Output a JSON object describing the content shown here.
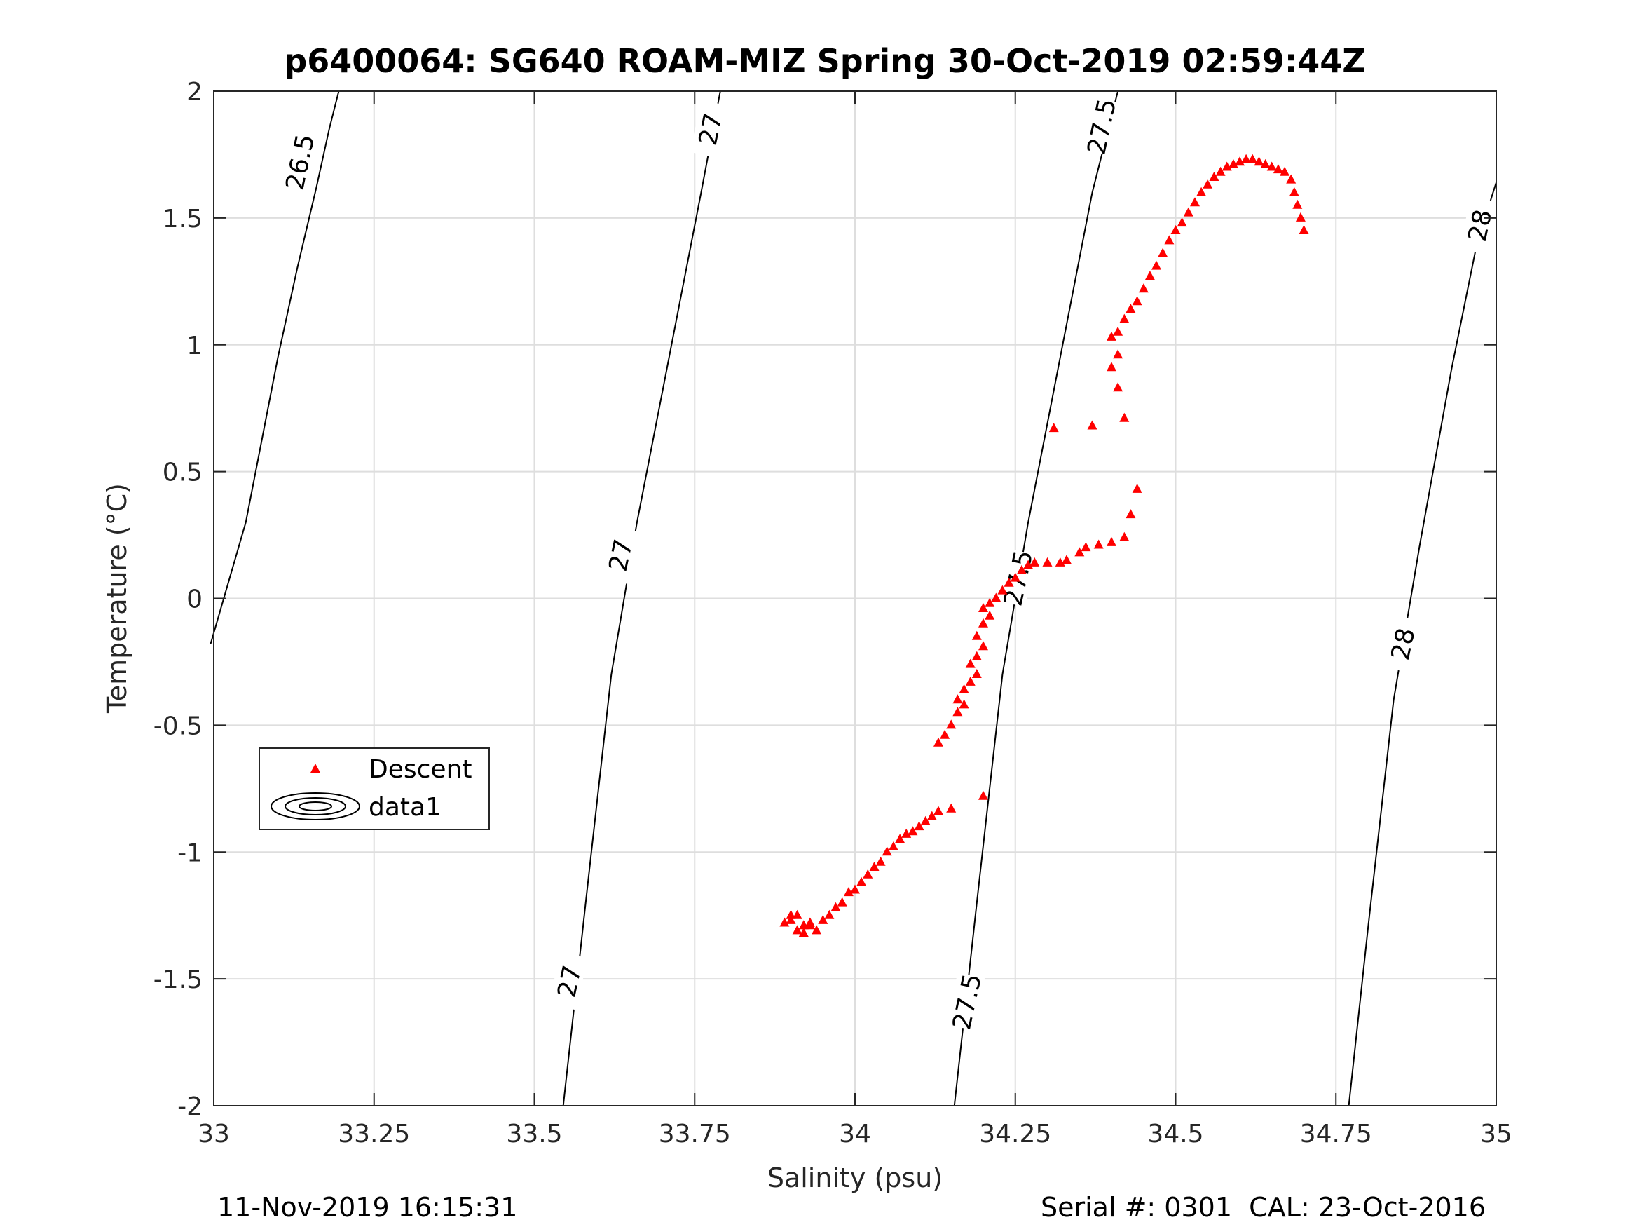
{
  "chart_data": {
    "type": "scatter",
    "title": "p6400064: SG640 ROAM-MIZ Spring 30-Oct-2019 02:59:44Z",
    "xlabel": "Salinity (psu)",
    "ylabel": "Temperature (°C)",
    "xlim": [
      33,
      35
    ],
    "ylim": [
      -2,
      2
    ],
    "grid": true,
    "x_ticks": [
      33,
      33.25,
      33.5,
      33.75,
      34,
      34.25,
      34.5,
      34.75,
      35
    ],
    "x_tick_labels": [
      "33",
      "33.25",
      "33.5",
      "33.75",
      "34",
      "34.25",
      "34.5",
      "34.75",
      "35"
    ],
    "y_ticks": [
      2,
      1.5,
      1,
      0.5,
      0,
      -0.5,
      -1,
      -1.5,
      -2
    ],
    "y_tick_labels": [
      "2",
      "1.5",
      "1",
      "0.5",
      "0",
      "-0.5",
      "-1",
      "-1.5",
      "-2"
    ],
    "legend": {
      "placement": "left-lower",
      "entries": [
        "Descent",
        "data1"
      ]
    },
    "contours": [
      {
        "level": "26.5",
        "points": [
          [
            32.995,
            -0.18
          ],
          [
            33.05,
            0.3
          ],
          [
            33.1,
            0.95
          ],
          [
            33.13,
            1.3
          ],
          [
            33.16,
            1.62
          ],
          [
            33.18,
            1.85
          ],
          [
            33.195,
            2.0
          ]
        ]
      },
      {
        "level": "27",
        "points": [
          [
            33.545,
            -2.0
          ],
          [
            33.58,
            -1.2
          ],
          [
            33.62,
            -0.3
          ],
          [
            33.66,
            0.3
          ],
          [
            33.71,
            0.95
          ],
          [
            33.76,
            1.6
          ],
          [
            33.79,
            2.0
          ]
        ]
      },
      {
        "level": "27.5",
        "points": [
          [
            34.155,
            -2.0
          ],
          [
            34.19,
            -1.2
          ],
          [
            34.23,
            -0.3
          ],
          [
            34.27,
            0.3
          ],
          [
            34.32,
            0.95
          ],
          [
            34.37,
            1.6
          ],
          [
            34.41,
            2.0
          ]
        ]
      },
      {
        "level": "28",
        "points": [
          [
            34.77,
            -2.0
          ],
          [
            34.8,
            -1.3
          ],
          [
            34.84,
            -0.4
          ],
          [
            34.88,
            0.2
          ],
          [
            34.93,
            0.9
          ],
          [
            34.97,
            1.4
          ],
          [
            35.0,
            1.64
          ]
        ]
      }
    ],
    "contour_labels": [
      {
        "text": "26.5",
        "x": 33.135,
        "y": 1.72
      },
      {
        "text": "27",
        "x": 33.775,
        "y": 1.85
      },
      {
        "text": "27",
        "x": 33.635,
        "y": 0.17
      },
      {
        "text": "27",
        "x": 33.555,
        "y": -1.51
      },
      {
        "text": "27.5",
        "x": 34.385,
        "y": 1.86
      },
      {
        "text": "27.5",
        "x": 34.255,
        "y": 0.08
      },
      {
        "text": "27.5",
        "x": 34.175,
        "y": -1.59
      },
      {
        "text": "28",
        "x": 34.975,
        "y": 1.47
      },
      {
        "text": "28",
        "x": 34.855,
        "y": -0.18
      }
    ],
    "series": [
      {
        "name": "Descent",
        "color": "#ff0000",
        "marker": "triangle",
        "x": [
          33.89,
          33.9,
          33.91,
          33.92,
          33.91,
          33.9,
          33.92,
          33.93,
          33.94,
          33.93,
          33.95,
          33.96,
          33.97,
          33.98,
          33.99,
          34.0,
          34.01,
          34.02,
          34.03,
          34.04,
          34.05,
          34.06,
          34.07,
          34.08,
          34.09,
          34.1,
          34.11,
          34.12,
          34.13,
          34.15,
          34.2,
          34.13,
          34.14,
          34.15,
          34.16,
          34.17,
          34.16,
          34.17,
          34.18,
          34.19,
          34.18,
          34.19,
          34.2,
          34.19,
          34.2,
          34.21,
          34.2,
          34.21,
          34.22,
          34.23,
          34.24,
          34.25,
          34.26,
          34.27,
          34.28,
          34.3,
          34.32,
          34.33,
          34.35,
          34.36,
          34.38,
          34.4,
          34.42,
          34.43,
          34.44,
          34.31,
          34.37,
          34.42,
          34.41,
          34.4,
          34.41,
          34.4,
          34.41,
          34.42,
          34.43,
          34.44,
          34.45,
          34.46,
          34.47,
          34.48,
          34.49,
          34.5,
          34.51,
          34.52,
          34.53,
          34.54,
          34.55,
          34.56,
          34.57,
          34.58,
          34.59,
          34.6,
          34.61,
          34.62,
          34.63,
          34.64,
          34.65,
          34.66,
          34.67,
          34.68,
          34.685,
          34.69,
          34.695,
          34.7
        ],
        "y": [
          -1.28,
          -1.27,
          -1.25,
          -1.29,
          -1.31,
          -1.25,
          -1.32,
          -1.29,
          -1.31,
          -1.28,
          -1.27,
          -1.25,
          -1.22,
          -1.2,
          -1.16,
          -1.15,
          -1.12,
          -1.09,
          -1.06,
          -1.04,
          -1.0,
          -0.98,
          -0.95,
          -0.93,
          -0.92,
          -0.9,
          -0.88,
          -0.86,
          -0.84,
          -0.83,
          -0.78,
          -0.57,
          -0.54,
          -0.5,
          -0.45,
          -0.42,
          -0.4,
          -0.36,
          -0.33,
          -0.3,
          -0.26,
          -0.23,
          -0.19,
          -0.15,
          -0.1,
          -0.07,
          -0.04,
          -0.02,
          0.0,
          0.03,
          0.06,
          0.08,
          0.11,
          0.13,
          0.14,
          0.14,
          0.14,
          0.15,
          0.18,
          0.2,
          0.21,
          0.22,
          0.24,
          0.33,
          0.43,
          0.67,
          0.68,
          0.71,
          0.83,
          0.91,
          0.96,
          1.03,
          1.05,
          1.1,
          1.14,
          1.17,
          1.22,
          1.27,
          1.31,
          1.36,
          1.41,
          1.45,
          1.48,
          1.52,
          1.56,
          1.6,
          1.63,
          1.66,
          1.68,
          1.7,
          1.71,
          1.72,
          1.73,
          1.73,
          1.72,
          1.71,
          1.7,
          1.69,
          1.68,
          1.65,
          1.6,
          1.55,
          1.5,
          1.45
        ]
      }
    ]
  },
  "footer": {
    "left": "11-Nov-2019 16:15:31",
    "right": "Serial #: 0301  CAL: 23-Oct-2016"
  }
}
